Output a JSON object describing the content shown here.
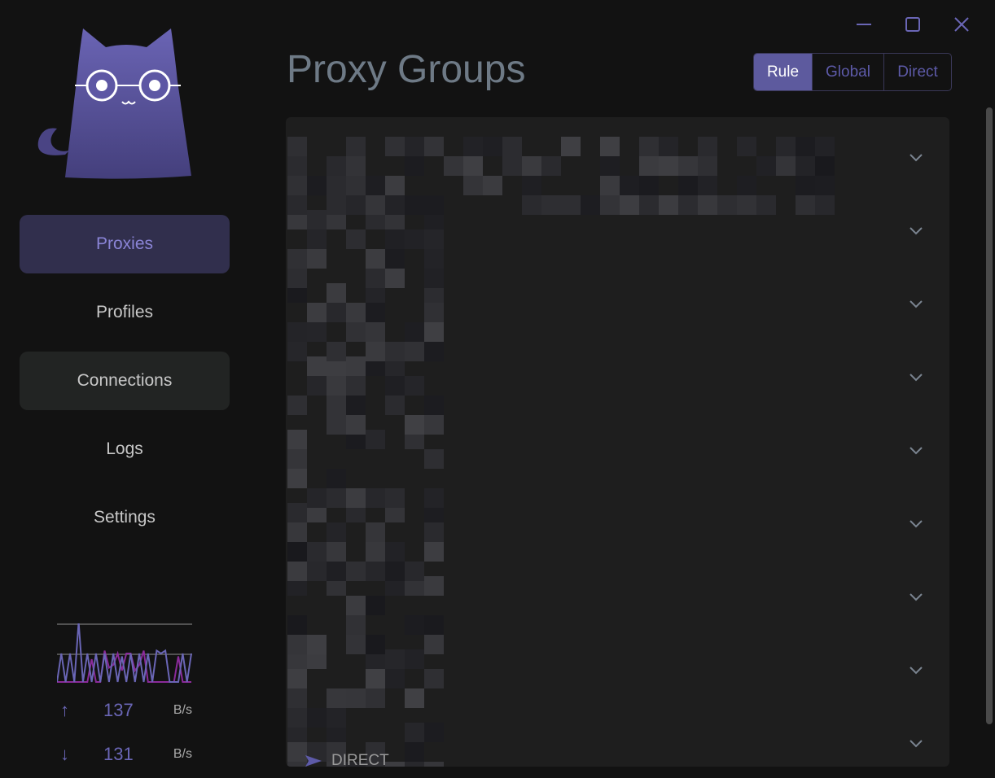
{
  "window": {
    "controls": [
      "minimize",
      "maximize",
      "close"
    ]
  },
  "sidebar": {
    "items": [
      {
        "label": "Proxies",
        "state": "active"
      },
      {
        "label": "Profiles"
      },
      {
        "label": "Connections",
        "state": "hover"
      },
      {
        "label": "Logs"
      },
      {
        "label": "Settings"
      }
    ],
    "traffic": {
      "upload_value": "137",
      "upload_unit": "B/s",
      "download_value": "131",
      "download_unit": "B/s",
      "upload_series": [
        0,
        1,
        0,
        1,
        0,
        2.1,
        0,
        1,
        0,
        1,
        0,
        1,
        0,
        1,
        0,
        0.9,
        0,
        1,
        0,
        1,
        0,
        1,
        0,
        1.1,
        1,
        1.1,
        0,
        0,
        0,
        1,
        0,
        1
      ],
      "download_series": [
        0,
        0,
        0,
        0,
        0,
        0,
        0,
        0,
        0.8,
        0,
        0,
        1.1,
        0.5,
        0.6,
        1.0,
        0.4,
        1,
        1,
        0.4,
        0.6,
        1.1,
        0,
        0,
        0,
        0,
        0,
        0,
        0,
        0.9,
        0,
        0,
        0
      ],
      "colors": {
        "upload": "#6a66b6",
        "download": "#8a2b9a"
      }
    }
  },
  "header": {
    "title": "Proxy Groups",
    "modes": [
      {
        "label": "Rule",
        "selected": true
      },
      {
        "label": "Global"
      },
      {
        "label": "Direct"
      }
    ]
  },
  "groups": {
    "count_rows": 9,
    "last_visible_proxy": "DIRECT"
  },
  "colors": {
    "accent": "#5d5a9e",
    "background": "#121212",
    "panel": "#1e1e1e"
  }
}
